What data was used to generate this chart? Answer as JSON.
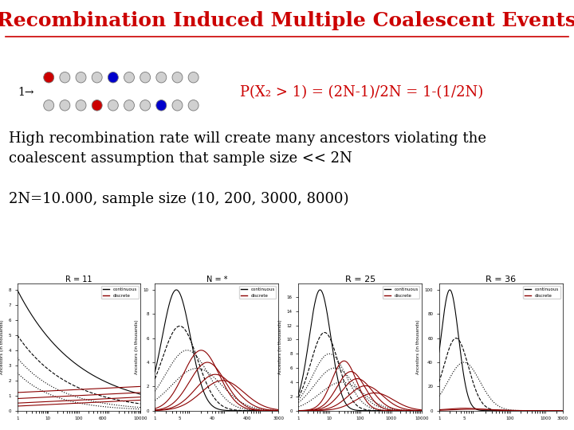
{
  "title": "Recombination Induced Multiple Coalescent Events",
  "title_color": "#cc0000",
  "title_fontsize": 18,
  "bg_color": "#ffffff",
  "equation": "P(X₂ > 1) = (2N-1)/2N = 1-(1/2N)",
  "eq_color": "#cc0000",
  "eq_fontsize": 13,
  "text1": "High recombination rate will create many ancestors violating the\ncoalescent assumption that sample size << 2N",
  "text2": "2N=10.000, sample size (10, 200, 3000, 8000)",
  "text_color": "#000000",
  "text_fontsize": 13,
  "row1_colors": [
    "#cc0000",
    "#d0d0d0",
    "#d0d0d0",
    "#d0d0d0",
    "#0000cc",
    "#d0d0d0",
    "#d0d0d0",
    "#d0d0d0",
    "#d0d0d0",
    "#d0d0d0"
  ],
  "row2_colors": [
    "#d0d0d0",
    "#d0d0d0",
    "#d0d0d0",
    "#cc0000",
    "#d0d0d0",
    "#d0d0d0",
    "#d0d0d0",
    "#0000cc",
    "#d0d0d0",
    "#d0d0d0"
  ],
  "panel_titles": [
    "R = 11",
    "N = *",
    "R = 25",
    "R = 36"
  ],
  "panel_title_sizes": [
    7,
    7,
    8,
    8
  ]
}
